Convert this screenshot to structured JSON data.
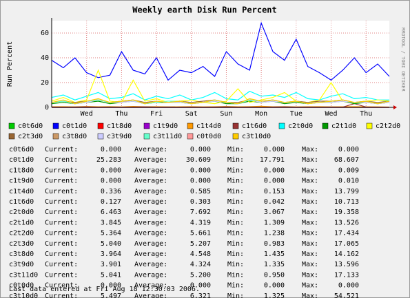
{
  "chart_data": {
    "type": "line",
    "title": "Weekly earth Disk Run Percent",
    "y_label": "Run Percent",
    "watermark": "RRDTOOL / TOBI OETIKER",
    "categories": [
      null,
      null,
      null,
      "Wed",
      null,
      null,
      "Thu",
      null,
      null,
      "Fri",
      null,
      null,
      "Sat",
      null,
      null,
      "Sun",
      null,
      null,
      "Mon",
      null,
      null,
      "Tue",
      null,
      null,
      "Wed",
      null,
      null,
      "Thu",
      null,
      null
    ],
    "ylim": [
      0,
      70
    ],
    "yticks": [
      0,
      20,
      40,
      60
    ],
    "grid": true,
    "series": [
      {
        "name": "c0t6d0",
        "color": "#00cc00",
        "values": [
          0,
          0,
          0,
          0,
          0,
          0,
          0,
          0,
          0,
          0,
          0,
          0,
          0,
          0,
          0,
          0,
          0,
          0,
          0,
          0,
          0,
          0,
          0,
          0,
          0,
          0,
          0,
          0,
          0,
          0
        ]
      },
      {
        "name": "c0t1d0",
        "color": "#0000ff",
        "values": [
          38,
          32,
          40,
          28,
          24,
          26,
          45,
          30,
          27,
          40,
          22,
          30,
          28,
          33,
          25,
          45,
          35,
          30,
          68,
          45,
          38,
          55,
          33,
          28,
          22,
          30,
          40,
          28,
          35,
          25
        ]
      },
      {
        "name": "c1t8d0",
        "color": "#ff0000",
        "values": [
          0,
          0,
          0,
          0,
          0,
          0,
          0,
          0,
          0,
          0,
          0,
          0,
          0,
          0,
          0,
          0,
          0,
          0,
          0,
          0,
          0,
          0,
          0,
          0,
          0,
          0,
          0,
          0,
          0,
          0
        ]
      },
      {
        "name": "c1t9d0",
        "color": "#9900cc",
        "values": [
          0,
          0,
          0,
          0,
          0,
          0,
          0,
          0,
          0,
          0,
          0,
          0,
          0,
          0,
          0,
          0,
          0,
          0,
          0,
          0,
          0,
          0,
          0,
          0,
          0,
          0,
          0,
          0,
          0,
          0
        ]
      },
      {
        "name": "c1t4d0",
        "color": "#ff9900",
        "values": [
          0.5,
          0.6,
          0.4,
          0.7,
          0.5,
          0.6,
          0.4,
          0.8,
          0.5,
          0.6,
          0.4,
          0.5,
          0.6,
          0.4,
          0.5,
          0.7,
          0.5,
          0.6,
          0.9,
          0.5,
          0.6,
          0.4,
          0.5,
          0.6,
          0.4,
          0.5,
          0.6,
          0.5,
          0.4,
          0.3
        ]
      },
      {
        "name": "c1t6d0",
        "color": "#993333",
        "values": [
          0.3,
          0.2,
          0.3,
          0.4,
          0.2,
          0.3,
          0.2,
          0.3,
          0.4,
          0.2,
          0.3,
          0.2,
          0.3,
          0.2,
          0.3,
          0.4,
          0.2,
          0.3,
          0.2,
          0.3,
          0.4,
          0.2,
          0.3,
          0.2,
          0.3,
          0.2,
          3,
          0.3,
          0.2,
          0.1
        ]
      },
      {
        "name": "c2t0d0",
        "color": "#00ffff",
        "values": [
          8,
          10,
          6,
          9,
          12,
          7,
          8,
          11,
          6,
          9,
          7,
          10,
          6,
          8,
          12,
          7,
          6,
          13,
          9,
          10,
          8,
          12,
          7,
          6,
          9,
          11,
          7,
          8,
          6,
          6
        ]
      },
      {
        "name": "c2t1d0",
        "color": "#009900",
        "values": [
          3,
          4,
          3,
          4,
          5,
          3,
          4,
          5,
          3,
          4,
          4,
          4,
          3,
          4,
          5,
          3,
          3,
          5,
          4,
          5,
          3,
          4,
          3,
          4,
          4,
          5,
          3,
          4,
          3,
          4
        ]
      },
      {
        "name": "c2t2d0",
        "color": "#ffff00",
        "values": [
          5,
          8,
          4,
          6,
          30,
          5,
          4,
          22,
          5,
          7,
          4,
          5,
          6,
          4,
          3,
          5,
          15,
          4,
          6,
          8,
          12,
          5,
          4,
          6,
          20,
          5,
          4,
          5,
          6,
          5
        ]
      },
      {
        "name": "c2t3d0",
        "color": "#996633",
        "values": [
          4,
          5,
          4,
          5,
          6,
          4,
          5,
          6,
          4,
          5,
          4,
          5,
          4,
          5,
          6,
          4,
          4,
          6,
          5,
          6,
          4,
          5,
          4,
          5,
          5,
          6,
          4,
          5,
          4,
          5
        ]
      },
      {
        "name": "c3t8d0",
        "color": "#cc9966",
        "values": [
          4,
          5,
          3,
          5,
          6,
          4,
          4,
          6,
          3,
          5,
          4,
          5,
          3,
          4,
          6,
          4,
          3,
          6,
          5,
          5,
          4,
          5,
          3,
          4,
          5,
          5,
          4,
          4,
          3,
          4
        ]
      },
      {
        "name": "c3t9d0",
        "color": "#ccccff",
        "values": [
          4,
          5,
          3,
          4,
          6,
          4,
          4,
          5,
          3,
          5,
          4,
          4,
          3,
          4,
          5,
          4,
          3,
          6,
          4,
          5,
          4,
          5,
          3,
          4,
          4,
          5,
          4,
          4,
          3,
          4
        ]
      },
      {
        "name": "c3t11d0",
        "color": "#66ffcc",
        "values": [
          4,
          5,
          3,
          5,
          6,
          4,
          5,
          6,
          3,
          4,
          5,
          5,
          3,
          4,
          6,
          4,
          3,
          6,
          5,
          6,
          4,
          5,
          3,
          4,
          5,
          6,
          4,
          5,
          3,
          5
        ]
      },
      {
        "name": "c0t0d0",
        "color": "#ff9999",
        "values": [
          0,
          0,
          0,
          0,
          0,
          0,
          0,
          0,
          0,
          0,
          0,
          0,
          0,
          0,
          0,
          0,
          0,
          0,
          0,
          0,
          0,
          0,
          0,
          0,
          0,
          0,
          0,
          0,
          0,
          0
        ]
      },
      {
        "name": "c3t10d0",
        "color": "#ffcc00",
        "values": [
          4,
          6,
          3,
          5,
          7,
          4,
          5,
          6,
          3,
          5,
          4,
          5,
          3,
          4,
          6,
          4,
          3,
          7,
          5,
          6,
          4,
          5,
          3,
          4,
          5,
          6,
          4,
          5,
          3,
          5
        ]
      }
    ]
  },
  "stats": {
    "labels": [
      "Current:",
      "Average:",
      "Min:",
      "Max:"
    ],
    "rows": [
      [
        "0.000",
        "0.000",
        "0.000",
        "0.000"
      ],
      [
        "25.283",
        "30.609",
        "17.791",
        "68.607"
      ],
      [
        "0.000",
        "0.000",
        "0.000",
        "0.009"
      ],
      [
        "0.000",
        "0.000",
        "0.000",
        "0.010"
      ],
      [
        "0.336",
        "0.585",
        "0.153",
        "13.799"
      ],
      [
        "0.127",
        "0.303",
        "0.042",
        "10.713"
      ],
      [
        "6.463",
        "7.692",
        "3.067",
        "19.358"
      ],
      [
        "3.845",
        "4.319",
        "1.309",
        "13.526"
      ],
      [
        "5.364",
        "5.661",
        "1.238",
        "17.434"
      ],
      [
        "5.040",
        "5.207",
        "0.983",
        "17.065"
      ],
      [
        "3.964",
        "4.548",
        "1.435",
        "14.162"
      ],
      [
        "3.901",
        "4.324",
        "1.335",
        "13.596"
      ],
      [
        "5.041",
        "5.200",
        "0.950",
        "17.133"
      ],
      [
        "0.000",
        "0.000",
        "0.000",
        "0.000"
      ],
      [
        "5.497",
        "6.321",
        "1.325",
        "54.521"
      ]
    ]
  },
  "footer": "Last data entered at Fri Aug 18 12:30:03 2006."
}
